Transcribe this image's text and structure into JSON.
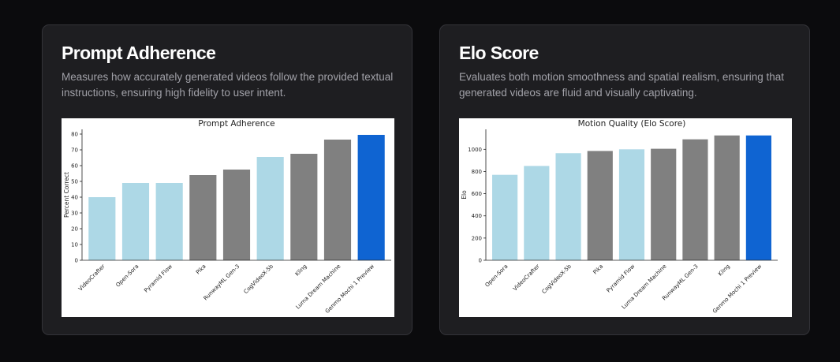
{
  "cards": [
    {
      "title": "Prompt Adherence",
      "description": "Measures how accurately generated videos follow the provided textual instructions, ensuring high fidelity to user intent."
    },
    {
      "title": "Elo Score",
      "description": "Evaluates both motion smoothness and spatial realism, ensuring that generated videos are fluid and visually captivating."
    }
  ],
  "colors": {
    "light_blue": "#add8e6",
    "gray": "#808080",
    "highlight_blue": "#0f64d2"
  },
  "chart_data": [
    {
      "type": "bar",
      "title": "Prompt Adherence",
      "xlabel": "",
      "ylabel": "Percent Correct",
      "ylim": [
        0,
        83
      ],
      "yticks": [
        0,
        10,
        20,
        30,
        40,
        50,
        60,
        70,
        80
      ],
      "grid": false,
      "categories": [
        "VideoCrafter",
        "Open-Sora",
        "Pyramid Flow",
        "Pika",
        "RunwayML Gen-3",
        "CogVideoX-5b",
        "Kling",
        "Luma Dream Machine",
        "Genmo Mochi 1 Preview"
      ],
      "values": [
        40,
        49,
        49,
        54,
        57.5,
        65.5,
        67.5,
        76.5,
        79.5
      ],
      "bar_colors": [
        "light_blue",
        "light_blue",
        "light_blue",
        "gray",
        "gray",
        "light_blue",
        "gray",
        "gray",
        "highlight_blue"
      ]
    },
    {
      "type": "bar",
      "title": "Motion Quality (Elo Score)",
      "xlabel": "",
      "ylabel": "Elo",
      "ylim": [
        0,
        1180
      ],
      "yticks": [
        0,
        200,
        400,
        600,
        800,
        1000
      ],
      "grid": false,
      "categories": [
        "Open-Sora",
        "VideoCrafter",
        "CogVideoX-5b",
        "Pika",
        "Pyramid Flow",
        "Luma Dream Machine",
        "RunwayML Gen-3",
        "Kling",
        "Genmo Mochi 1 Preview"
      ],
      "values": [
        770,
        850,
        965,
        985,
        1000,
        1005,
        1090,
        1125,
        1125
      ],
      "bar_colors": [
        "light_blue",
        "light_blue",
        "light_blue",
        "gray",
        "light_blue",
        "gray",
        "gray",
        "gray",
        "highlight_blue"
      ]
    }
  ]
}
